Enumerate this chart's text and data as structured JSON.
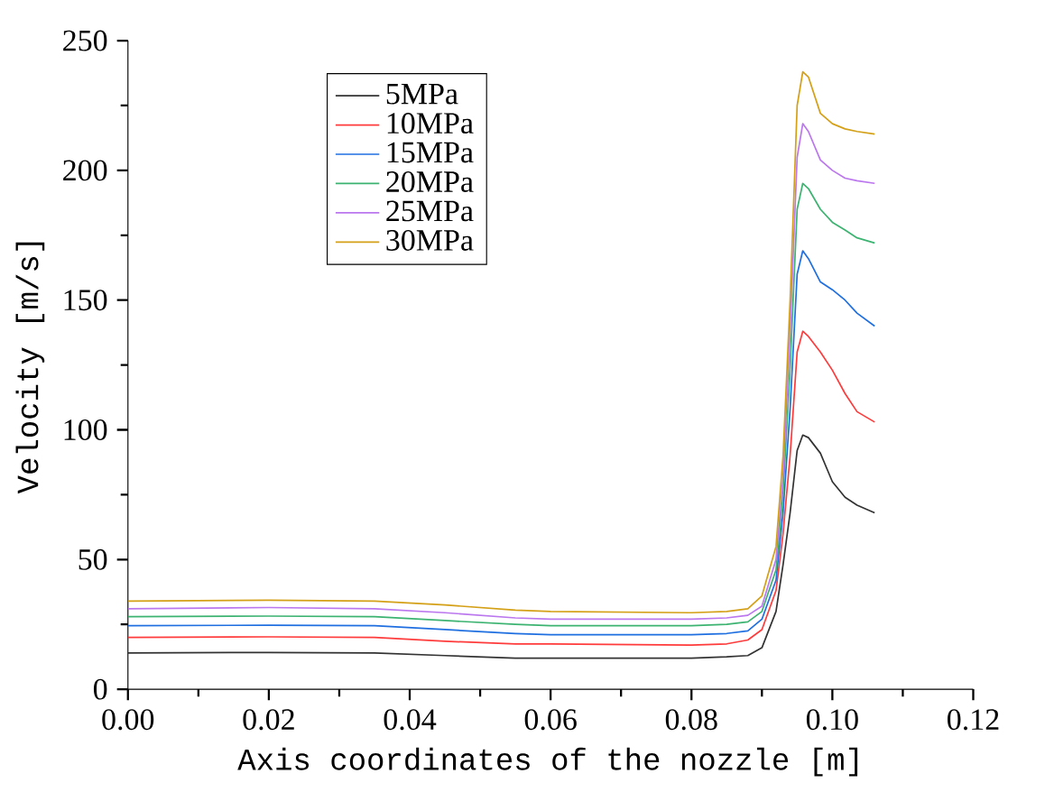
{
  "chart_data": {
    "type": "line",
    "xlabel": "Axis coordinates of the nozzle [m]",
    "ylabel": "Velocity [m/s]",
    "x": [
      0,
      0.02,
      0.035,
      0.045,
      0.055,
      0.06,
      0.08,
      0.085,
      0.088,
      0.09,
      0.092,
      0.093,
      0.094,
      0.095,
      0.0958,
      0.0966,
      0.0983,
      0.1,
      0.1018,
      0.1035,
      0.106
    ],
    "series": [
      {
        "name": "5MPa",
        "color": "#333333",
        "values": [
          14,
          14.2,
          14,
          13,
          12,
          12,
          12,
          12.5,
          13,
          16,
          30,
          48,
          68,
          92,
          98,
          97,
          91,
          80,
          74,
          71,
          68
        ]
      },
      {
        "name": "10MPa",
        "color": "#ff3b3b",
        "values": [
          20,
          20.2,
          20,
          18.5,
          17.5,
          17.5,
          17,
          17.5,
          19,
          23,
          38,
          60,
          90,
          130,
          138,
          136,
          130,
          123,
          114,
          107,
          103
        ]
      },
      {
        "name": "15MPa",
        "color": "#1f6fe0",
        "values": [
          24.5,
          24.7,
          24.5,
          23,
          21.5,
          21,
          21,
          21.5,
          22.5,
          27,
          42,
          68,
          108,
          160,
          169,
          166,
          157,
          154,
          150,
          145,
          140
        ]
      },
      {
        "name": "20MPa",
        "color": "#3cb371",
        "values": [
          28,
          28.2,
          28,
          26.5,
          25,
          24.5,
          24.5,
          25,
          26,
          30,
          46,
          75,
          124,
          185,
          195,
          193,
          185,
          180,
          177,
          174,
          172
        ]
      },
      {
        "name": "25MPa",
        "color": "#bb77ee",
        "values": [
          31,
          31.5,
          31,
          29.5,
          27.5,
          27,
          27,
          27.5,
          28.5,
          32,
          50,
          82,
          138,
          205,
          218,
          215,
          204,
          200,
          197,
          196,
          195
        ]
      },
      {
        "name": "30MPa",
        "color": "#d4a017",
        "values": [
          34,
          34.3,
          34,
          32.5,
          30.5,
          30,
          29.5,
          30,
          31,
          36,
          55,
          90,
          150,
          225,
          238,
          236,
          222,
          218,
          216,
          215,
          214
        ]
      }
    ],
    "xlim": [
      0,
      0.12
    ],
    "ylim": [
      0,
      250
    ],
    "xticks": [
      {
        "value": 0,
        "label": "0.00"
      },
      {
        "value": 0.02,
        "label": "0.02"
      },
      {
        "value": 0.04,
        "label": "0.04"
      },
      {
        "value": 0.06,
        "label": "0.06"
      },
      {
        "value": 0.08,
        "label": "0.08"
      },
      {
        "value": 0.1,
        "label": "0.10"
      },
      {
        "value": 0.12,
        "label": "0.12"
      }
    ],
    "yticks": [
      0,
      50,
      100,
      150,
      200,
      250
    ],
    "legend": "top",
    "grid": false,
    "marker": "none",
    "line_style": "solid"
  }
}
